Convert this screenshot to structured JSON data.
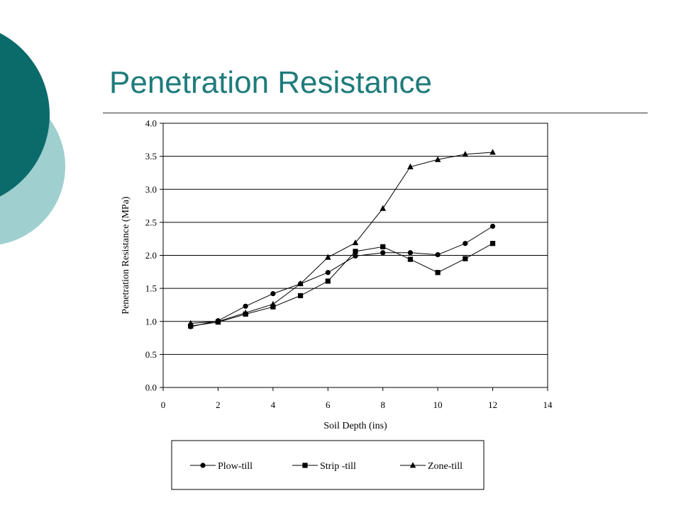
{
  "slide": {
    "title": "Penetration Resistance",
    "colors": {
      "accent_dark": "#0b6b6b",
      "accent_light": "#9fcfcf",
      "title": "#1f7b7b"
    }
  },
  "chart_data": {
    "type": "line",
    "title": "",
    "xlabel": "Soil Depth (ins)",
    "ylabel": "Penetration Resistance (MPa)",
    "xlim": [
      0,
      14
    ],
    "ylim": [
      0,
      4
    ],
    "x_ticks": [
      0,
      2,
      4,
      6,
      8,
      10,
      12,
      14
    ],
    "y_ticks": [
      0.0,
      0.5,
      1.0,
      1.5,
      2.0,
      2.5,
      3.0,
      3.5,
      4.0
    ],
    "grid": "horizontal",
    "legend_position": "bottom",
    "x": [
      1,
      2,
      3,
      4,
      5,
      6,
      7,
      8,
      9,
      10,
      11,
      12
    ],
    "series": [
      {
        "name": "Plow-till",
        "marker": "circle",
        "values": [
          0.92,
          1.01,
          1.23,
          1.42,
          1.57,
          1.74,
          1.99,
          2.04,
          2.04,
          2.01,
          2.18,
          2.44
        ]
      },
      {
        "name": "Strip -till",
        "marker": "square",
        "values": [
          0.93,
          0.99,
          1.11,
          1.22,
          1.39,
          1.61,
          2.06,
          2.13,
          1.94,
          1.74,
          1.95,
          2.18
        ]
      },
      {
        "name": "Zone-till",
        "marker": "triangle",
        "values": [
          0.97,
          1.0,
          1.13,
          1.26,
          1.57,
          1.97,
          2.19,
          2.71,
          3.34,
          3.45,
          3.53,
          3.56
        ]
      }
    ]
  }
}
